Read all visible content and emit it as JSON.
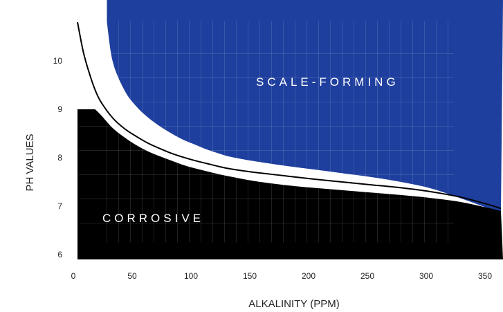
{
  "chart_data": {
    "type": "area",
    "title": "",
    "xlabel": "ALKALINITY (PPM)",
    "ylabel": "PH VALUES",
    "x_ticks": [
      0,
      50,
      100,
      150,
      200,
      250,
      300,
      350
    ],
    "y_ticks": [
      6,
      7,
      8,
      9,
      10
    ],
    "xlim": [
      0,
      360
    ],
    "ylim": [
      5.6,
      10.8
    ],
    "grid": true,
    "legend": "none",
    "colors": {
      "scale_forming": "#1f3f9e",
      "corrosive": "#000000",
      "boundary": "#000000"
    },
    "regions": [
      {
        "label": "SCALE-FORMING",
        "color": "#1f3f9e",
        "position": "above boundary",
        "x": [
          25,
          30,
          40,
          50,
          60,
          70,
          80,
          90,
          100,
          110,
          120,
          130,
          150,
          175,
          200,
          225,
          250,
          275,
          300,
          325,
          350,
          360
        ],
        "y": [
          10.8,
          9.98,
          9.39,
          9.06,
          8.83,
          8.65,
          8.5,
          8.37,
          8.27,
          8.17,
          8.09,
          8.02,
          7.93,
          7.84,
          7.76,
          7.68,
          7.6,
          7.5,
          7.37,
          7.17,
          6.95,
          6.87
        ]
      },
      {
        "label": "CORROSIVE",
        "color": "#000000",
        "position": "below boundary",
        "x": [
          0,
          15,
          20,
          30,
          40,
          50,
          60,
          70,
          80,
          90,
          100,
          110,
          120,
          130,
          150,
          175,
          200,
          225,
          250,
          275,
          300,
          325,
          350,
          360
        ],
        "y": [
          9.0,
          9.0,
          8.88,
          8.61,
          8.42,
          8.26,
          8.13,
          8.03,
          7.94,
          7.85,
          7.78,
          7.72,
          7.66,
          7.61,
          7.52,
          7.44,
          7.38,
          7.33,
          7.28,
          7.23,
          7.17,
          7.09,
          6.96,
          6.9
        ]
      }
    ],
    "series": [
      {
        "x": [
          0,
          5,
          10,
          15,
          20,
          30,
          40,
          50,
          60,
          70,
          80,
          90,
          100,
          110,
          120,
          130,
          150,
          175,
          200,
          225,
          250,
          275,
          300,
          325,
          350,
          360
        ],
        "y": [
          10.8,
          10.18,
          9.75,
          9.4,
          9.15,
          8.82,
          8.6,
          8.44,
          8.3,
          8.19,
          8.09,
          8.01,
          7.94,
          7.88,
          7.82,
          7.77,
          7.7,
          7.63,
          7.56,
          7.5,
          7.44,
          7.38,
          7.3,
          7.19,
          7.03,
          6.95
        ]
      }
    ],
    "annotations": [
      "SCALE-FORMING",
      "CORROSIVE"
    ]
  }
}
